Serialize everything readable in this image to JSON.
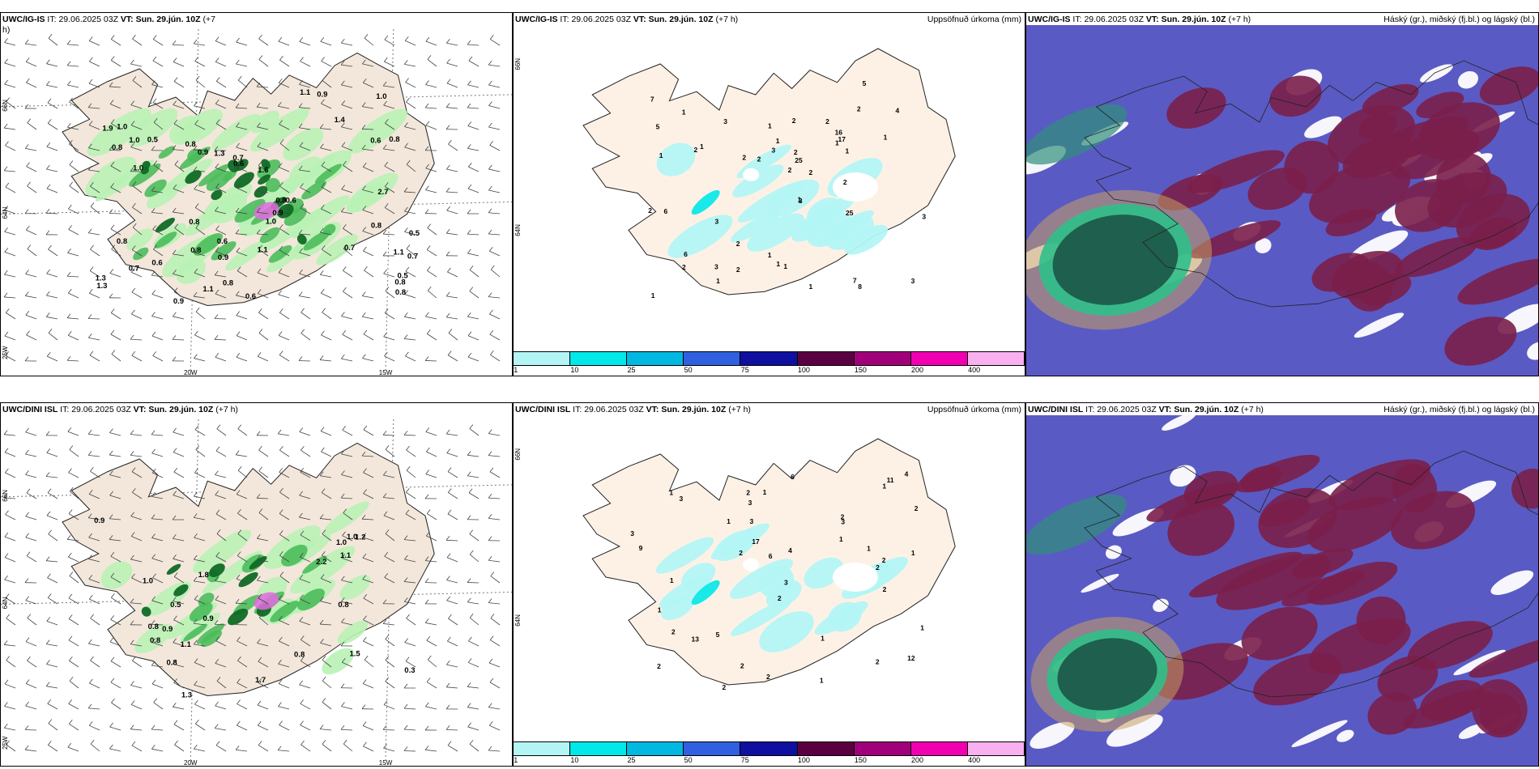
{
  "top": {
    "winds_panel": {
      "model": "UWC/IG-IS",
      "it_label": "IT:",
      "it_value": "29.06.2025 03Z",
      "vt_label": "VT:",
      "vt_value": "Sun. 29.jún. 10Z",
      "lead": "(+7",
      "lead_cont": "h)"
    },
    "precip_panel": {
      "model": "UWC/IG-IS",
      "it_label": "IT:",
      "it_value": "29.06.2025 03Z",
      "vt_label": "VT:",
      "vt_value": "Sun. 29.jún. 10Z",
      "lead": "(+7 h)",
      "title": "Uppsöfnuð úrkoma (mm)"
    },
    "cloud_panel": {
      "model": "UWC/IG-IS",
      "it_label": "IT:",
      "it_value": "29.06.2025 03Z",
      "vt_label": "VT:",
      "vt_value": "Sun. 29.jún. 10Z",
      "lead": "(+7 h)",
      "title": "Háský (gr.), miðský (fj.bl.) og lágský (bl.)"
    }
  },
  "bottom": {
    "winds_panel": {
      "model": "UWC/DINI ISL",
      "it_label": "IT:",
      "it_value": "29.06.2025 03Z",
      "vt_label": "VT:",
      "vt_value": "Sun. 29.jún. 10Z",
      "lead": "(+7 h)"
    },
    "precip_panel": {
      "model": "UWC/DINI ISL",
      "it_label": "IT:",
      "it_value": "29.06.2025 03Z",
      "vt_label": "VT:",
      "vt_value": "Sun. 29.jún. 10Z",
      "lead": "(+7 h)",
      "title": "Uppsöfnuð úrkoma (mm)"
    },
    "cloud_panel": {
      "model": "UWC/DINI ISL",
      "it_label": "IT:",
      "it_value": "29.06.2025 03Z",
      "vt_label": "VT:",
      "vt_value": "Sun. 29.jún. 10Z",
      "lead": "(+7 h)",
      "title": "Háský (gr.), miðský (fj.bl.) og lágský (bl.)"
    }
  },
  "axis_labels": {
    "lat66": "66N",
    "lat64": "64N",
    "lon25": "25W",
    "lon20": "20W",
    "lon15": "15W"
  },
  "precip_legend": {
    "ticks": [
      "1",
      "10",
      "25",
      "50",
      "75",
      "100",
      "150",
      "200",
      "400"
    ],
    "colors": [
      "#b3f5f5",
      "#00e8e8",
      "#00b8e0",
      "#3060e0",
      "#1010a0",
      "#5a0040",
      "#a0007a",
      "#f000b0",
      "#f8b0f0"
    ]
  },
  "top_winds_values": [
    "0.7",
    "0.6",
    "0.8",
    "0.5",
    "0.8",
    "1.0",
    "0.7",
    "0.6",
    "0.7",
    "0.5",
    "0.8",
    "0.6",
    "0.5",
    "1.4",
    "1.0",
    "0.9",
    "1.1",
    "0.8",
    "1.3",
    "0.8",
    "0.6",
    "0.9",
    "1.1",
    "1.0",
    "0.8",
    "1.0",
    "1.1",
    "1.3",
    "0.6",
    "0.9",
    "0.9",
    "0.8",
    "0.8",
    "0.6",
    "0.8",
    "1.0",
    "1.1",
    "0.8",
    "1.9",
    "2.7",
    "0.8",
    "0.9",
    "1.3",
    "0.7",
    "1.6"
  ],
  "top_precip_values": [
    "2",
    "1",
    "1",
    "1",
    "1",
    "1",
    "1",
    "1",
    "2",
    "2",
    "3",
    "2",
    "2",
    "2",
    "1",
    "1",
    "3",
    "3",
    "5",
    "3",
    "7",
    "7",
    "6",
    "1",
    "1",
    "2",
    "2",
    "25",
    "25",
    "16",
    "17",
    "4",
    "8",
    "6",
    "5",
    "2",
    "1",
    "2",
    "1",
    "3",
    "2",
    "3",
    "3",
    "2",
    "2",
    "2",
    "1",
    "1"
  ],
  "bottom_winds_values": [
    "0.8",
    "1.8",
    "1.7",
    "0.9",
    "0.8",
    "0.8",
    "1.3",
    "1.5",
    "0.3",
    "0.8",
    "0.9",
    "0.8",
    "1.0",
    "0.9",
    "1.0",
    "2.2",
    "1.0",
    "0.5",
    "1.2",
    "1.1",
    "1.1"
  ],
  "bottom_precip_values": [
    "2",
    "2",
    "1",
    "1",
    "1",
    "2",
    "4",
    "1",
    "2",
    "2",
    "1",
    "1",
    "2",
    "3",
    "2",
    "2",
    "3",
    "3",
    "3",
    "2",
    "4",
    "1",
    "6",
    "13",
    "17",
    "6",
    "11",
    "3",
    "12",
    "2",
    "3",
    "5",
    "2",
    "9",
    "2",
    "1",
    "1",
    "2",
    "1",
    "2",
    "1",
    "1"
  ],
  "colors": {
    "land": "#f2e7da",
    "land_precip": "#fdf1e6",
    "green_light": "#b9f2b5",
    "green_mid": "#4bbd5b",
    "green_dark": "#0f6a25",
    "magenta": "#e36ae0",
    "cyan_light": "#b3f5f5",
    "cloud_high": "#7a1f4a",
    "cloud_mid": "#5a5ac4",
    "cloud_low": "#1f8f6a"
  }
}
